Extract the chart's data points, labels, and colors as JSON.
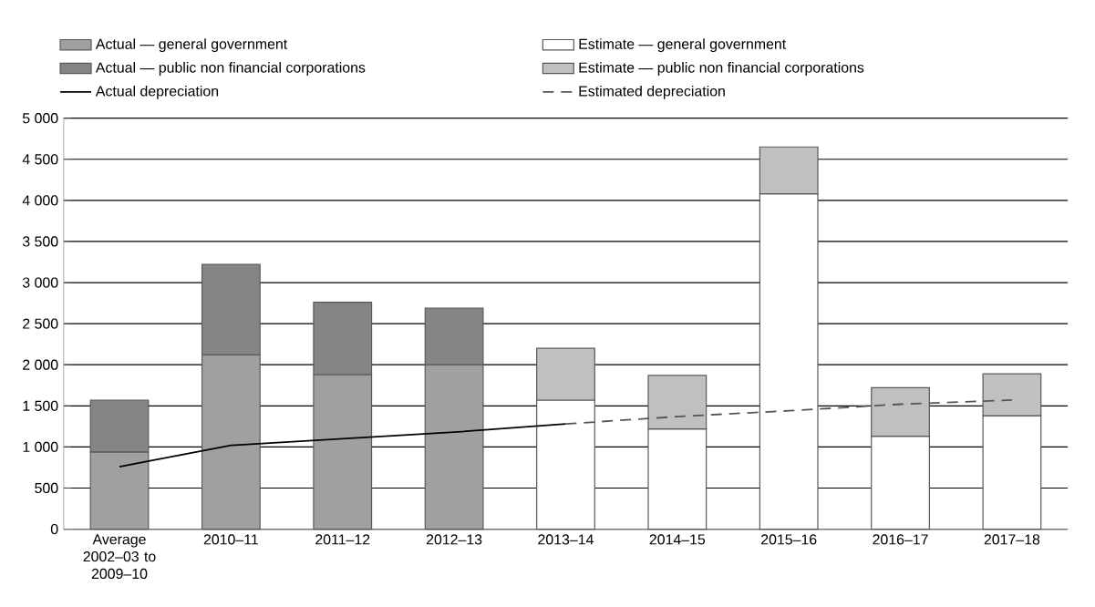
{
  "chart_data": {
    "type": "bar",
    "stacked": true,
    "grid": "y",
    "legend": "top",
    "marker": "none",
    "categories": [
      "Average 2002–03 to 2009–10",
      "2010–11",
      "2011–12",
      "2012–13",
      "2013–14",
      "2014–15",
      "2015–16",
      "2016–17",
      "2017–18"
    ],
    "ylim": [
      0,
      5000
    ],
    "yticks": [
      {
        "value": 0,
        "label": "0"
      },
      {
        "value": 500,
        "label": "500"
      },
      {
        "value": 1000,
        "label": "1 000"
      },
      {
        "value": 1500,
        "label": "1 500"
      },
      {
        "value": 2000,
        "label": "2 000"
      },
      {
        "value": 2500,
        "label": "2 500"
      },
      {
        "value": 3000,
        "label": "3 000"
      },
      {
        "value": 3500,
        "label": "3 500"
      },
      {
        "value": 4000,
        "label": "4 000"
      },
      {
        "value": 4500,
        "label": "4 500"
      },
      {
        "value": 5000,
        "label": "5 000"
      }
    ],
    "series": [
      {
        "name": "Actual — general government",
        "color": "#a0a0a0",
        "values": [
          940,
          2120,
          1880,
          2000,
          null,
          null,
          null,
          null,
          null
        ]
      },
      {
        "name": "Actual — public non financial corporations",
        "color": "#858585",
        "values": [
          630,
          1100,
          880,
          690,
          null,
          null,
          null,
          null,
          null
        ]
      },
      {
        "name": "Actual depreciation",
        "type": "line",
        "color": "#000000",
        "line_style": "solid",
        "values": [
          760,
          1020,
          1100,
          1180,
          1280,
          null,
          null,
          null,
          null
        ]
      },
      {
        "name": "Estimate — general government",
        "color": "#ffffff",
        "values": [
          null,
          null,
          null,
          null,
          1570,
          1220,
          4080,
          1130,
          1380
        ]
      },
      {
        "name": "Estimate — public non financial corporations",
        "color": "#c0c0c0",
        "values": [
          null,
          null,
          null,
          null,
          630,
          650,
          570,
          590,
          510
        ]
      },
      {
        "name": "Estimated depreciation",
        "type": "line",
        "color": "#555555",
        "line_style": "dashed",
        "values": [
          null,
          null,
          null,
          null,
          1280,
          1370,
          1440,
          1520,
          1570
        ]
      }
    ]
  }
}
